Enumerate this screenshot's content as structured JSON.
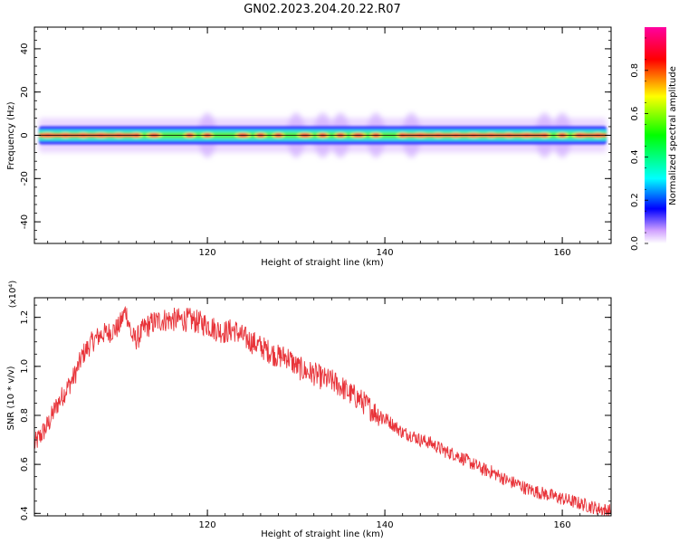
{
  "title": "GN02.2023.204.20.22.R07",
  "colors": {
    "snr_line": "#e8343a",
    "axis": "#000000",
    "background": "#ffffff"
  },
  "chart_data": [
    {
      "type": "heatmap",
      "name": "spectrogram",
      "xlabel": "Height of straight line (km)",
      "ylabel": "Frequency (Hz)",
      "xlim": [
        100.5,
        165.5
      ],
      "ylim": [
        -50,
        50
      ],
      "x_ticks": [
        120,
        140,
        160
      ],
      "y_ticks": [
        40,
        20,
        0,
        -20,
        -40
      ],
      "x_tick_labels": [
        "120",
        "140",
        "160"
      ],
      "y_tick_labels": [
        "40",
        "20",
        "0",
        "-20",
        "-40"
      ],
      "description": "energy concentrated in a narrow band around 0 Hz along the whole height range",
      "band_center_hz": 0,
      "band_halfwidth_hz": 2.5,
      "hotspots_km": [
        102,
        104,
        106,
        108,
        110,
        112,
        114,
        118,
        120,
        124,
        126,
        128,
        131,
        133,
        135,
        137,
        139,
        142,
        144,
        146,
        148,
        150,
        152,
        154,
        156,
        158,
        160,
        162,
        164
      ],
      "colorbar": {
        "label": "Normalized spectral amplitude",
        "range": [
          0,
          1
        ],
        "ticks": [
          0.0,
          0.2,
          0.4,
          0.6,
          0.8
        ],
        "tick_labels": [
          "0.0",
          "0.2",
          "0.4",
          "0.6",
          "0.8"
        ],
        "colors": [
          "#ffffff",
          "#c080ff",
          "#0000ff",
          "#00ffff",
          "#00ff00",
          "#ffff00",
          "#ff0000",
          "#ff00a0"
        ]
      }
    },
    {
      "type": "line",
      "name": "snr",
      "xlabel": "Height of straight line (km)",
      "ylabel": "SNR (10 * v/v)",
      "y_multiplier": "(x10⁴)",
      "xlim": [
        100.5,
        165.5
      ],
      "ylim": [
        0.39,
        1.28
      ],
      "x_ticks": [
        120,
        140,
        160
      ],
      "y_ticks": [
        0.4,
        0.6,
        0.8,
        1.0,
        1.2
      ],
      "x_tick_labels": [
        "120",
        "140",
        "160"
      ],
      "y_tick_labels": [
        "0.4",
        "0.6",
        "0.8",
        "1.0",
        "1.2"
      ],
      "series": [
        {
          "x": [
            100.5,
            102,
            103,
            104,
            105,
            106,
            107,
            108,
            109,
            110,
            110.8,
            111.5,
            112,
            113,
            114,
            115,
            116,
            117,
            118,
            119,
            120,
            121,
            122,
            123,
            124,
            125,
            126,
            127,
            128,
            129,
            130,
            131,
            132,
            133,
            134,
            135,
            136,
            137,
            138,
            139,
            140,
            141,
            142,
            143,
            144,
            145,
            146,
            147,
            148,
            149,
            150,
            151,
            152,
            153,
            154,
            155,
            156,
            157,
            158,
            159,
            160,
            161,
            162,
            163,
            164,
            165.5
          ],
          "y": [
            0.68,
            0.76,
            0.84,
            0.9,
            0.96,
            1.05,
            1.1,
            1.13,
            1.14,
            1.16,
            1.23,
            1.12,
            1.11,
            1.16,
            1.18,
            1.19,
            1.19,
            1.19,
            1.19,
            1.18,
            1.17,
            1.15,
            1.14,
            1.15,
            1.12,
            1.1,
            1.08,
            1.06,
            1.04,
            1.04,
            1.0,
            0.98,
            0.97,
            0.95,
            0.94,
            0.92,
            0.89,
            0.87,
            0.84,
            0.81,
            0.79,
            0.76,
            0.73,
            0.72,
            0.7,
            0.69,
            0.67,
            0.65,
            0.64,
            0.62,
            0.6,
            0.58,
            0.57,
            0.55,
            0.53,
            0.52,
            0.5,
            0.49,
            0.48,
            0.47,
            0.46,
            0.45,
            0.44,
            0.43,
            0.42,
            0.41
          ]
        }
      ]
    }
  ]
}
